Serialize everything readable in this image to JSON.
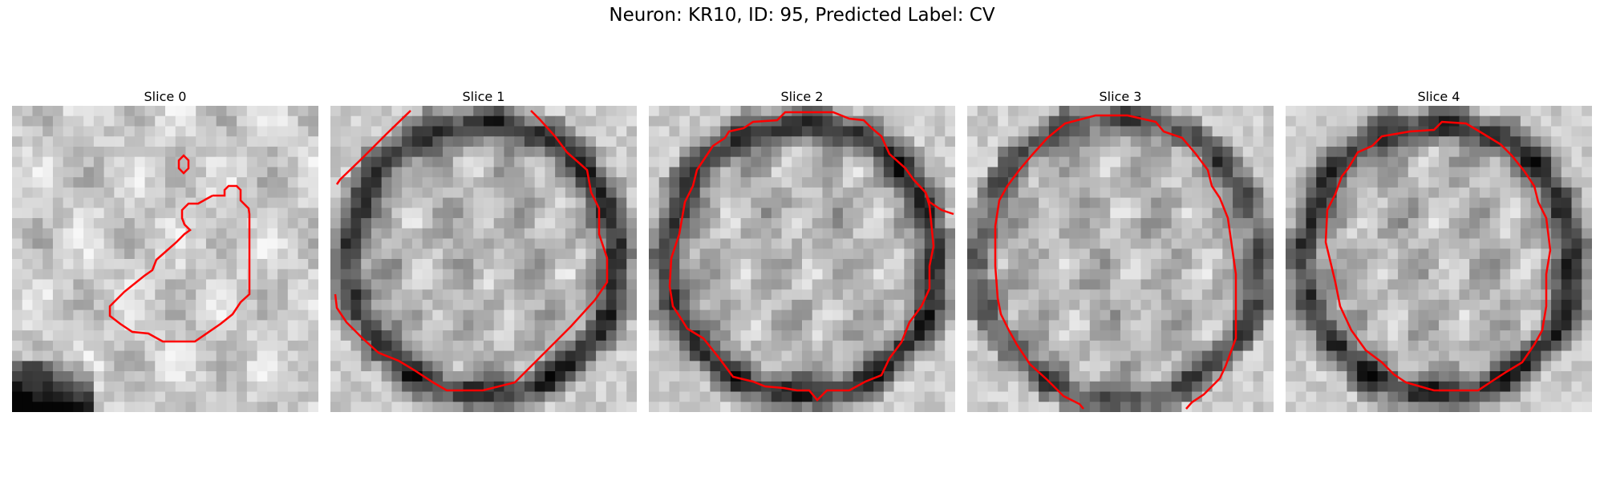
{
  "figure": {
    "title": "Neuron: KR10, ID: 95, Predicted Label: CV",
    "contour_color": "#ff0000"
  },
  "panels": [
    {
      "title": "Slice 0"
    },
    {
      "title": "Slice 1"
    },
    {
      "title": "Slice 2"
    },
    {
      "title": "Slice 3"
    },
    {
      "title": "Slice 4"
    }
  ]
}
